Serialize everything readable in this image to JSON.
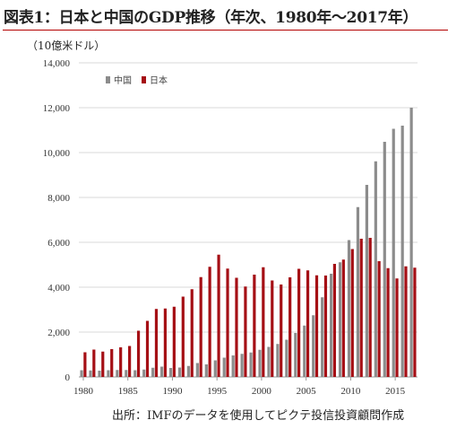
{
  "title": "図表1：日本と中国のGDP推移（年次、1980年〜2017年）",
  "unit_label": "（10億米ドル）",
  "source": "出所：IMFのデータを使用してピクテ投信投資顧問作成",
  "colors": {
    "china": "#8c8c8c",
    "japan": "#a50f15",
    "rule": "#b40000"
  },
  "chart_data": {
    "type": "bar",
    "title": "",
    "ylabel": "（10億米ドル）",
    "xlabel": "",
    "ylim": [
      0,
      14000
    ],
    "yticks": [
      0,
      2000,
      4000,
      6000,
      8000,
      10000,
      12000,
      14000
    ],
    "ytick_labels": [
      "0",
      "2,000",
      "4,000",
      "6,000",
      "8,000",
      "10,000",
      "12,000",
      "14,000"
    ],
    "xtick_labels": [
      "1980",
      "1985",
      "1990",
      "1995",
      "2000",
      "2005",
      "2010",
      "2015"
    ],
    "legend_position": "top-left",
    "grid": true,
    "categories": [
      1980,
      1981,
      1982,
      1983,
      1984,
      1985,
      1986,
      1987,
      1988,
      1989,
      1990,
      1991,
      1992,
      1993,
      1994,
      1995,
      1996,
      1997,
      1998,
      1999,
      2000,
      2001,
      2002,
      2003,
      2004,
      2005,
      2006,
      2007,
      2008,
      2009,
      2010,
      2011,
      2012,
      2013,
      2014,
      2015,
      2016,
      2017
    ],
    "series": [
      {
        "name": "中国",
        "color": "#8c8c8c",
        "values": [
          300,
          290,
          280,
          300,
          310,
          310,
          300,
          330,
          410,
          460,
          400,
          420,
          490,
          620,
          560,
          740,
          860,
          960,
          1030,
          1090,
          1210,
          1340,
          1470,
          1660,
          1960,
          2290,
          2750,
          3550,
          4600,
          5110,
          6100,
          7570,
          8560,
          9610,
          10480,
          11060,
          11200,
          12000
        ]
      },
      {
        "name": "日本",
        "color": "#a50f15",
        "values": [
          1100,
          1220,
          1130,
          1240,
          1320,
          1380,
          2060,
          2500,
          3030,
          3050,
          3130,
          3580,
          3910,
          4450,
          4910,
          5450,
          4830,
          4420,
          4030,
          4560,
          4890,
          4300,
          4120,
          4440,
          4820,
          4750,
          4530,
          4520,
          5040,
          5230,
          5700,
          6160,
          6200,
          5160,
          4850,
          4390,
          4930,
          4870
        ]
      }
    ]
  }
}
